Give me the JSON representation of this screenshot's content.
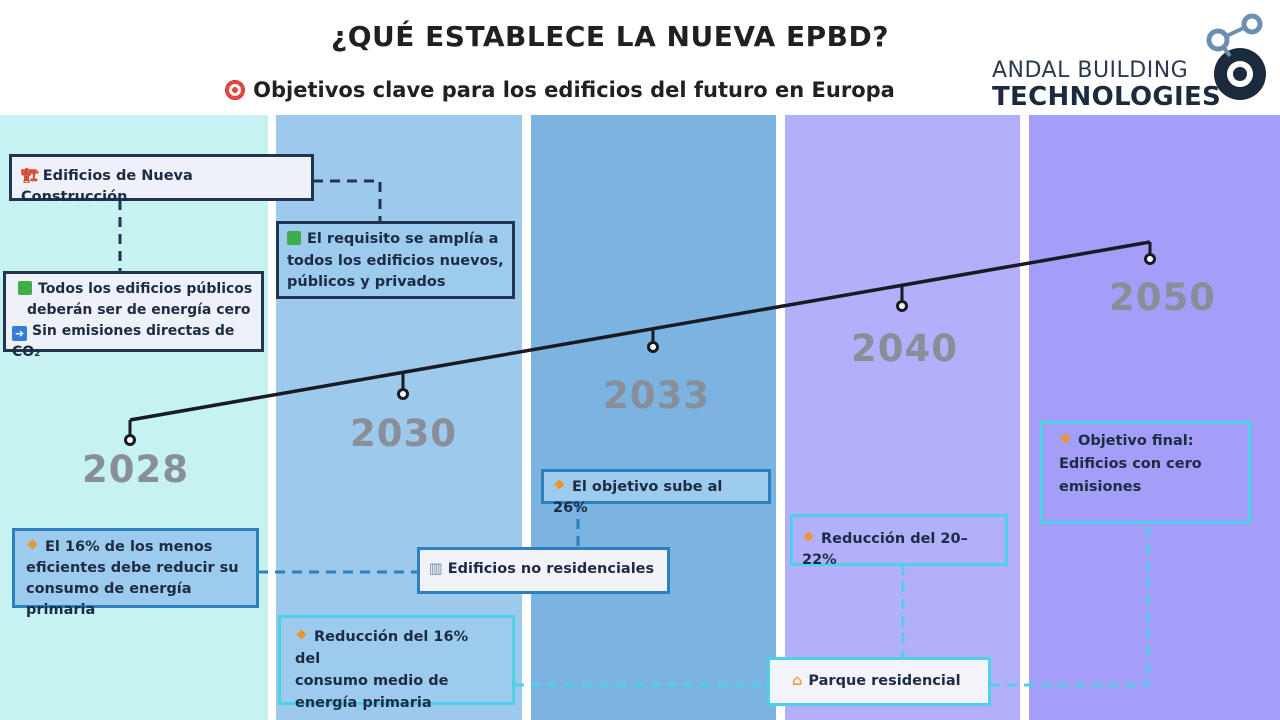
{
  "header": {
    "title": "¿QUÉ ESTABLECE LA NUEVA EPBD?",
    "subtitle": "Objetivos clave para los edificios del futuro en Europa",
    "subtitle_icon": "target-icon"
  },
  "logo": {
    "line1": "ANDAL BUILDING",
    "line2": "TECHNOLOGIES"
  },
  "years": [
    "2028",
    "2030",
    "2033",
    "2040",
    "2050"
  ],
  "new_construction": {
    "label": "Edificios de Nueva Construcción",
    "icon": "crane-icon",
    "public_lines": [
      "Todos los edificios públicos",
      "deberán ser de energía cero",
      "Sin emisiones directas de CO₂"
    ],
    "all_lines": [
      "El requisito se amplía a",
      "todos los edificios nuevos,",
      "públicos y privados"
    ]
  },
  "non_residential": {
    "label": "Edificios no residenciales",
    "icon": "office-building-icon",
    "target_16_lines": [
      "El 16% de los menos",
      "eficientes debe reducir su",
      "consumo de energía primaria"
    ],
    "target_26": "El objetivo sube al 26%"
  },
  "residential": {
    "label": "Parque residencial",
    "icon": "house-icon",
    "reduction_16_lines": [
      "Reducción del 16% del",
      "consumo medio de",
      "energía primaria"
    ],
    "reduction_20_22": "Reducción del 20–22%",
    "final_lines": [
      "Objetivo final:",
      "Edificios con cero",
      "emisiones"
    ]
  },
  "colors": {
    "band_1": "#c6f3f1",
    "band_2": "#9dc9ec",
    "band_3": "#7bb4e1",
    "band_4": "#b3b0fb",
    "band_5": "#a39ef8",
    "dark_border": "#22344f",
    "blue_border": "#2d7fc0",
    "cyan_border": "#4fd0e8",
    "year_text": "#888f99"
  }
}
